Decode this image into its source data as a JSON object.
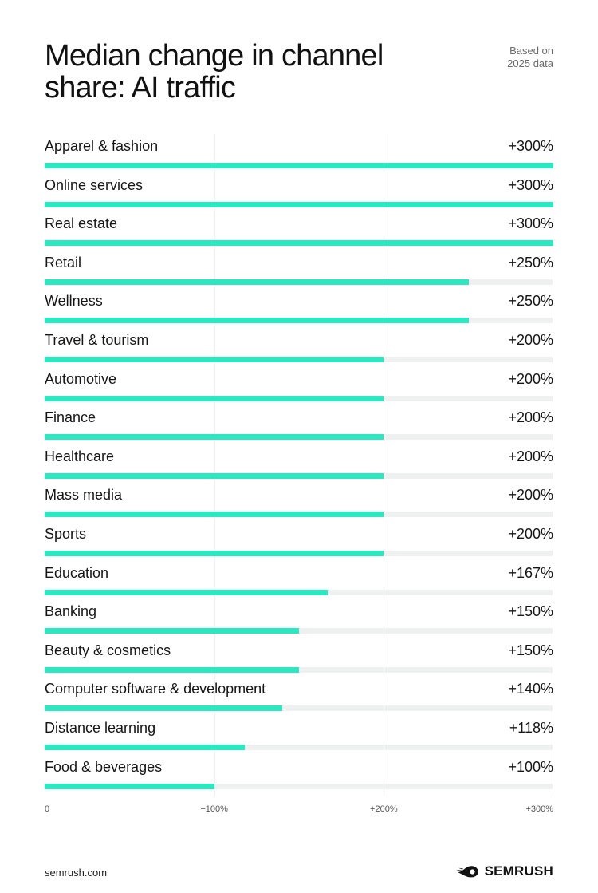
{
  "header": {
    "title": "Median change in channel share: AI traffic",
    "note_line1": "Based on",
    "note_line2": "2025 data"
  },
  "chart_data": {
    "type": "bar",
    "orientation": "horizontal",
    "title": "Median change in channel share: AI traffic",
    "xlim": [
      0,
      300
    ],
    "x_ticks": [
      "0",
      "+100%",
      "+200%",
      "+300%"
    ],
    "grid": true,
    "bar_color": "#2ce8c0",
    "track_color": "#eef1f0",
    "categories": [
      "Apparel & fashion",
      "Online services",
      "Real estate",
      "Retail",
      "Wellness",
      "Travel & tourism",
      "Automotive",
      "Finance",
      "Healthcare",
      "Mass media",
      "Sports",
      "Education",
      "Banking",
      "Beauty & cosmetics",
      "Computer software & development",
      "Distance learning",
      "Food & beverages"
    ],
    "values": [
      300,
      300,
      300,
      250,
      250,
      200,
      200,
      200,
      200,
      200,
      200,
      167,
      150,
      150,
      140,
      118,
      100
    ],
    "value_labels": [
      "+300%",
      "+300%",
      "+300%",
      "+250%",
      "+250%",
      "+200%",
      "+200%",
      "+200%",
      "+200%",
      "+200%",
      "+200%",
      "+167%",
      "+150%",
      "+150%",
      "+140%",
      "+118%",
      "+100%"
    ]
  },
  "footer": {
    "url": "semrush.com",
    "brand": "SEMRUSH",
    "brand_icon": "semrush-fireball-icon"
  }
}
